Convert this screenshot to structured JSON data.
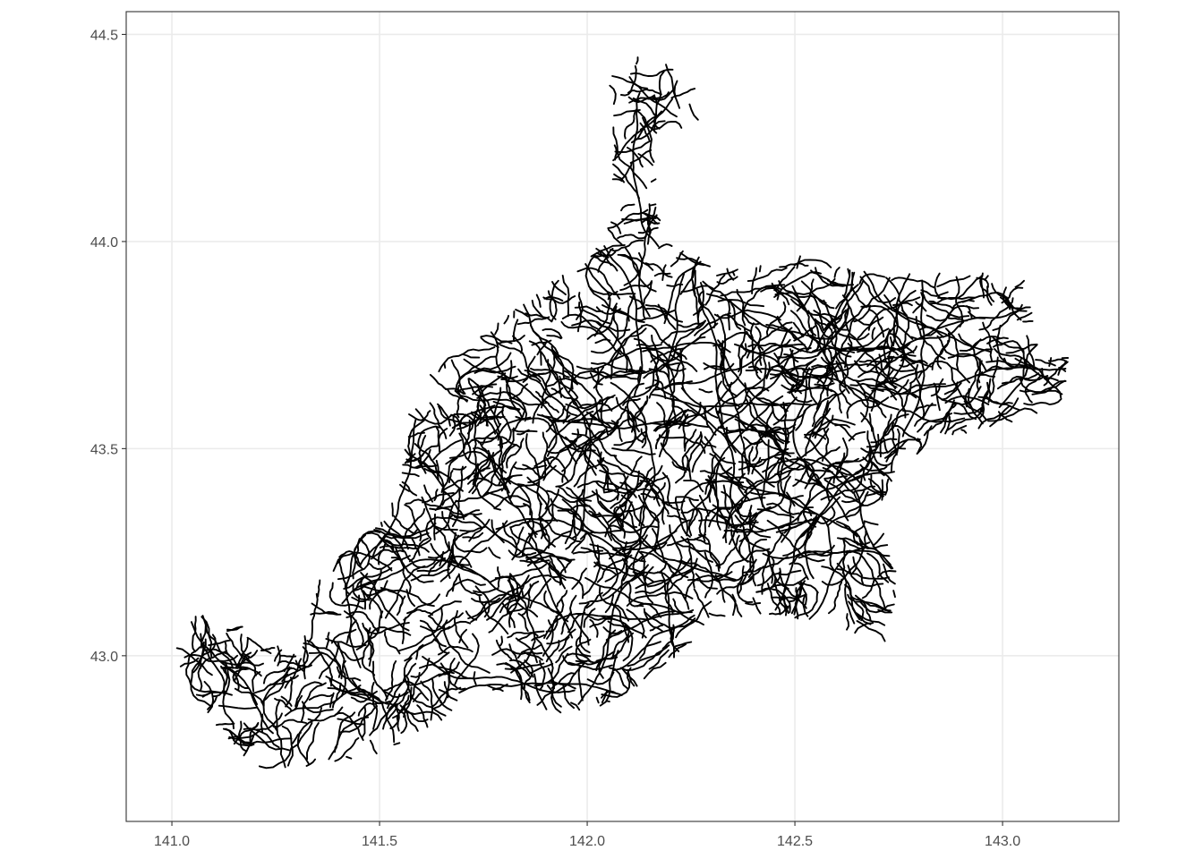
{
  "chart_data": {
    "type": "map",
    "title": "",
    "xlabel": "",
    "ylabel": "",
    "xlim": [
      140.89,
      143.28
    ],
    "ylim": [
      42.6,
      44.555
    ],
    "x_ticks": [
      141.0,
      141.5,
      142.0,
      142.5,
      143.0
    ],
    "x_tick_labels": [
      "141.0",
      "141.5",
      "142.0",
      "142.5",
      "143.0"
    ],
    "y_ticks": [
      43.0,
      43.5,
      44.0,
      44.5
    ],
    "y_tick_labels": [
      "43.0",
      "43.5",
      "44.0",
      "44.5"
    ],
    "grid": true,
    "minor_grid": false,
    "theme": "bw",
    "line_color": "#000000",
    "grid_color": "#ebebeb",
    "panel_border_color": "#333333",
    "features": "river network (dense line segments)",
    "region_outline_lonlat": [
      [
        141.0,
        43.02
      ],
      [
        141.06,
        43.1
      ],
      [
        141.13,
        43.11
      ],
      [
        141.22,
        43.04
      ],
      [
        141.3,
        43.0
      ],
      [
        141.35,
        43.18
      ],
      [
        141.44,
        43.28
      ],
      [
        141.5,
        43.32
      ],
      [
        141.55,
        43.42
      ],
      [
        141.57,
        43.58
      ],
      [
        141.6,
        43.68
      ],
      [
        141.66,
        43.72
      ],
      [
        141.78,
        43.8
      ],
      [
        141.9,
        43.9
      ],
      [
        142.0,
        43.95
      ],
      [
        142.06,
        44.05
      ],
      [
        142.06,
        44.25
      ],
      [
        142.05,
        44.42
      ],
      [
        142.15,
        44.46
      ],
      [
        142.3,
        44.35
      ],
      [
        142.27,
        44.28
      ],
      [
        142.16,
        44.25
      ],
      [
        142.18,
        44.0
      ],
      [
        142.35,
        43.93
      ],
      [
        142.5,
        43.97
      ],
      [
        142.7,
        43.92
      ],
      [
        142.9,
        43.93
      ],
      [
        143.05,
        43.92
      ],
      [
        143.08,
        43.8
      ],
      [
        143.1,
        43.72
      ],
      [
        143.16,
        43.75
      ],
      [
        143.15,
        43.62
      ],
      [
        143.02,
        43.55
      ],
      [
        142.85,
        43.53
      ],
      [
        142.75,
        43.45
      ],
      [
        142.7,
        43.35
      ],
      [
        142.75,
        43.18
      ],
      [
        142.72,
        43.03
      ],
      [
        142.6,
        43.07
      ],
      [
        142.45,
        43.1
      ],
      [
        142.3,
        43.08
      ],
      [
        142.2,
        42.98
      ],
      [
        142.05,
        42.88
      ],
      [
        141.95,
        42.86
      ],
      [
        141.85,
        42.88
      ],
      [
        141.72,
        42.92
      ],
      [
        141.67,
        42.85
      ],
      [
        141.48,
        42.75
      ],
      [
        141.3,
        42.73
      ],
      [
        141.2,
        42.7
      ],
      [
        141.15,
        42.78
      ],
      [
        141.05,
        42.9
      ],
      [
        141.0,
        43.02
      ]
    ],
    "river_line_count": 1400,
    "rng_seed": 20240507
  }
}
